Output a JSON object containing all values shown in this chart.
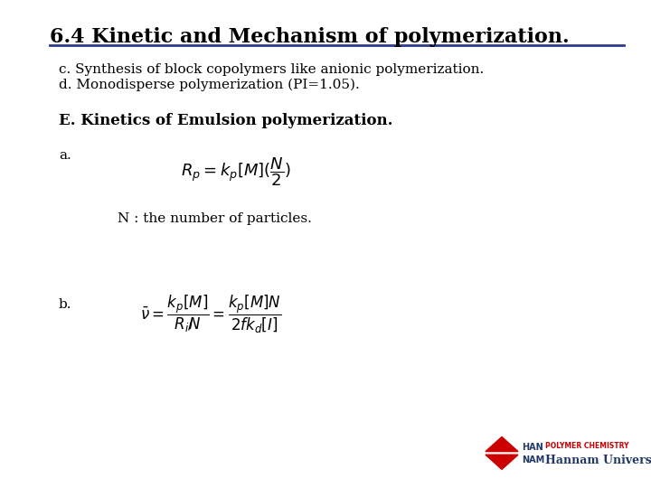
{
  "title": "6.4 Kinetic and Mechanism of polymerization.",
  "title_fontsize": 16,
  "title_color": "#000000",
  "line_color": "#2E3A8C",
  "text_c": "c. Synthesis of block copolymers like anionic polymerization.",
  "text_d": "d. Monodisperse polymerization (PI=1.05).",
  "text_E": "E. Kinetics of Emulsion polymerization.",
  "text_a": "a.",
  "text_b": "b.",
  "text_N_note": "N : the number of particles.",
  "bg_color": "#FFFFFF",
  "subtitle_fontsize": 11,
  "label_fontsize": 11,
  "formula_a_fontsize": 13,
  "formula_b_fontsize": 12,
  "note_fontsize": 11,
  "E_fontsize": 12,
  "university_text": "Hannam University",
  "university_sub": "POLYMER CHEMISTRY",
  "univ_color": "#1F3864",
  "univ_sub_color": "#CC0000"
}
